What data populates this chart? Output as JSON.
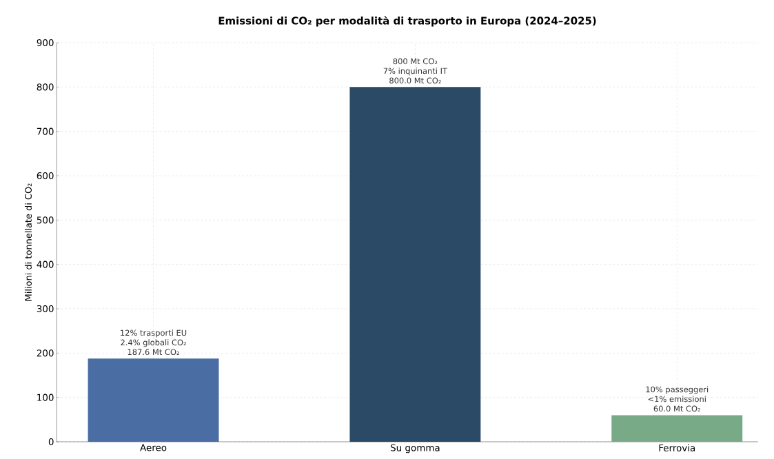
{
  "chart_data": {
    "type": "bar",
    "title": "Emissioni di CO₂ per modalità di trasporto in Europa (2024–2025)",
    "ylabel": "Milioni di tonnellate di CO₂",
    "categories": [
      "Aereo",
      "Su gomma",
      "Ferrovia"
    ],
    "values": [
      187.6,
      800,
      60
    ],
    "colors": [
      "#4a6ea3",
      "#2a4a66",
      "#78aa88"
    ],
    "value_labels": [
      "187.6 Mt CO₂",
      "800.0 Mt CO₂",
      "60.0 Mt CO₂"
    ],
    "annotations": [
      "12% trasporti EU",
      "2.4% globali CO₂",
      "800 Mt CO₂",
      "7% inquinanti IT",
      "10% passeggeri",
      "<1% emissioni"
    ],
    "ylim": [
      0,
      900
    ],
    "yticks": [
      0,
      100,
      200,
      300,
      400,
      500,
      600,
      700,
      800,
      900
    ],
    "grid": true
  }
}
